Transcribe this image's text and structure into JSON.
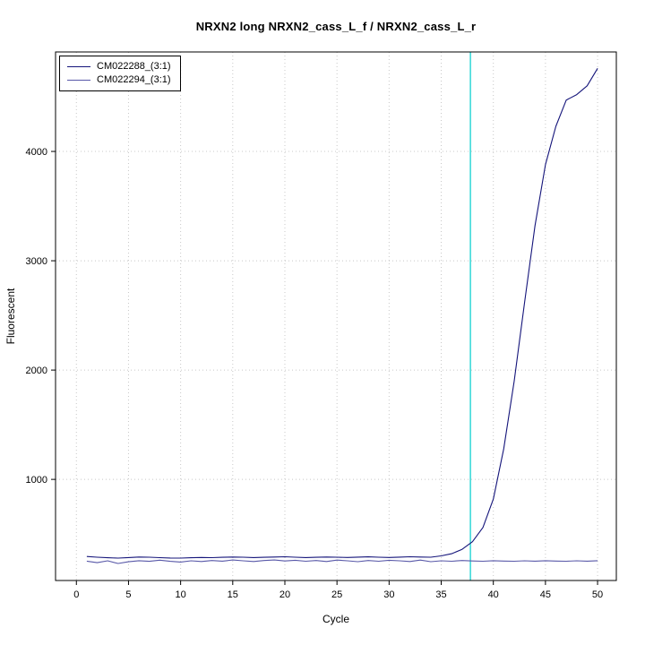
{
  "chart_data": {
    "type": "line",
    "title": "NRXN2 long NRXN2_cass_L_f / NRXN2_cass_L_r",
    "xlabel": "Cycle",
    "ylabel": "Fluorescent",
    "x_ticks": [
      0,
      5,
      10,
      15,
      20,
      25,
      30,
      35,
      40,
      45,
      50
    ],
    "y_ticks": [
      1000,
      2000,
      3000,
      4000
    ],
    "xlim": [
      -2,
      51.8
    ],
    "ylim": [
      75,
      4910
    ],
    "grid": true,
    "grid_color": "#c8c8c8",
    "legend_position": "top-left",
    "threshold_line": {
      "x": 37.8,
      "color": "#00cccc"
    },
    "x": [
      1,
      2,
      3,
      4,
      5,
      6,
      7,
      8,
      9,
      10,
      11,
      12,
      13,
      14,
      15,
      16,
      17,
      18,
      19,
      20,
      21,
      22,
      23,
      24,
      25,
      26,
      27,
      28,
      29,
      30,
      31,
      32,
      33,
      34,
      35,
      36,
      37,
      38,
      39,
      40,
      41,
      42,
      43,
      44,
      45,
      46,
      47,
      48,
      49,
      50
    ],
    "series": [
      {
        "name": "CM022288_(3:1)",
        "color": "#14147a",
        "values": [
          295,
          288,
          283,
          280,
          285,
          290,
          288,
          284,
          281,
          280,
          283,
          286,
          284,
          287,
          290,
          288,
          285,
          287,
          290,
          292,
          288,
          285,
          287,
          290,
          288,
          286,
          289,
          291,
          288,
          286,
          289,
          292,
          290,
          288,
          300,
          320,
          360,
          430,
          560,
          820,
          1280,
          1900,
          2620,
          3320,
          3880,
          4230,
          4470,
          4520,
          4600,
          4760
        ]
      },
      {
        "name": "CM022294_(3:1)",
        "color": "#5858a8",
        "values": [
          252,
          238,
          255,
          231,
          246,
          256,
          250,
          261,
          250,
          244,
          255,
          249,
          258,
          252,
          263,
          255,
          249,
          258,
          263,
          254,
          260,
          251,
          258,
          249,
          262,
          255,
          247,
          258,
          251,
          260,
          255,
          249,
          262,
          247,
          255,
          251,
          258,
          254,
          251,
          256,
          253,
          251,
          255,
          252,
          256,
          253,
          251,
          255,
          252,
          256
        ]
      }
    ]
  }
}
